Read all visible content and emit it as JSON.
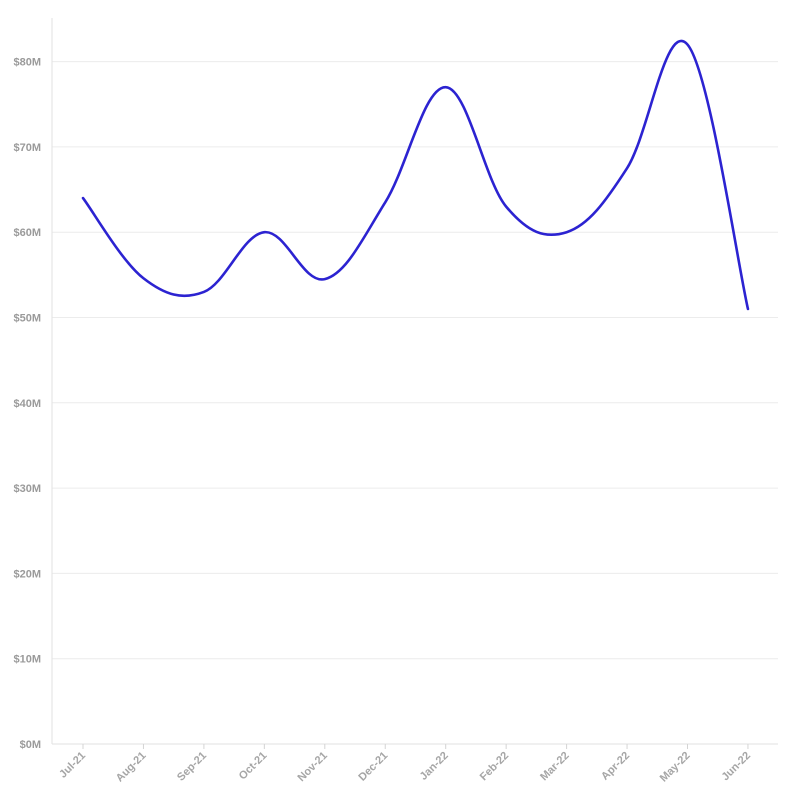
{
  "chart_data": {
    "type": "line",
    "title": "",
    "xlabel": "",
    "ylabel": "",
    "categories": [
      "Jul-21",
      "Aug-21",
      "Sep-21",
      "Oct-21",
      "Nov-21",
      "Dec-21",
      "Jan-22",
      "Feb-22",
      "Mar-22",
      "Apr-22",
      "May-22",
      "Jun-22"
    ],
    "series": [
      {
        "values": [
          64,
          54.6,
          53,
          60,
          54.5,
          63.5,
          77,
          63,
          60,
          67.5,
          82,
          51
        ],
        "color": "#2c23d1"
      }
    ],
    "ylim": [
      0,
      85
    ],
    "y_ticks": [
      0,
      10,
      20,
      30,
      40,
      50,
      60,
      70,
      80
    ],
    "y_tick_labels": [
      "$0M",
      "$10M",
      "$20M",
      "$30M",
      "$40M",
      "$50M",
      "$60M",
      "$70M",
      "$80M"
    ],
    "grid": true,
    "legend": "none",
    "curve": "smooth"
  }
}
